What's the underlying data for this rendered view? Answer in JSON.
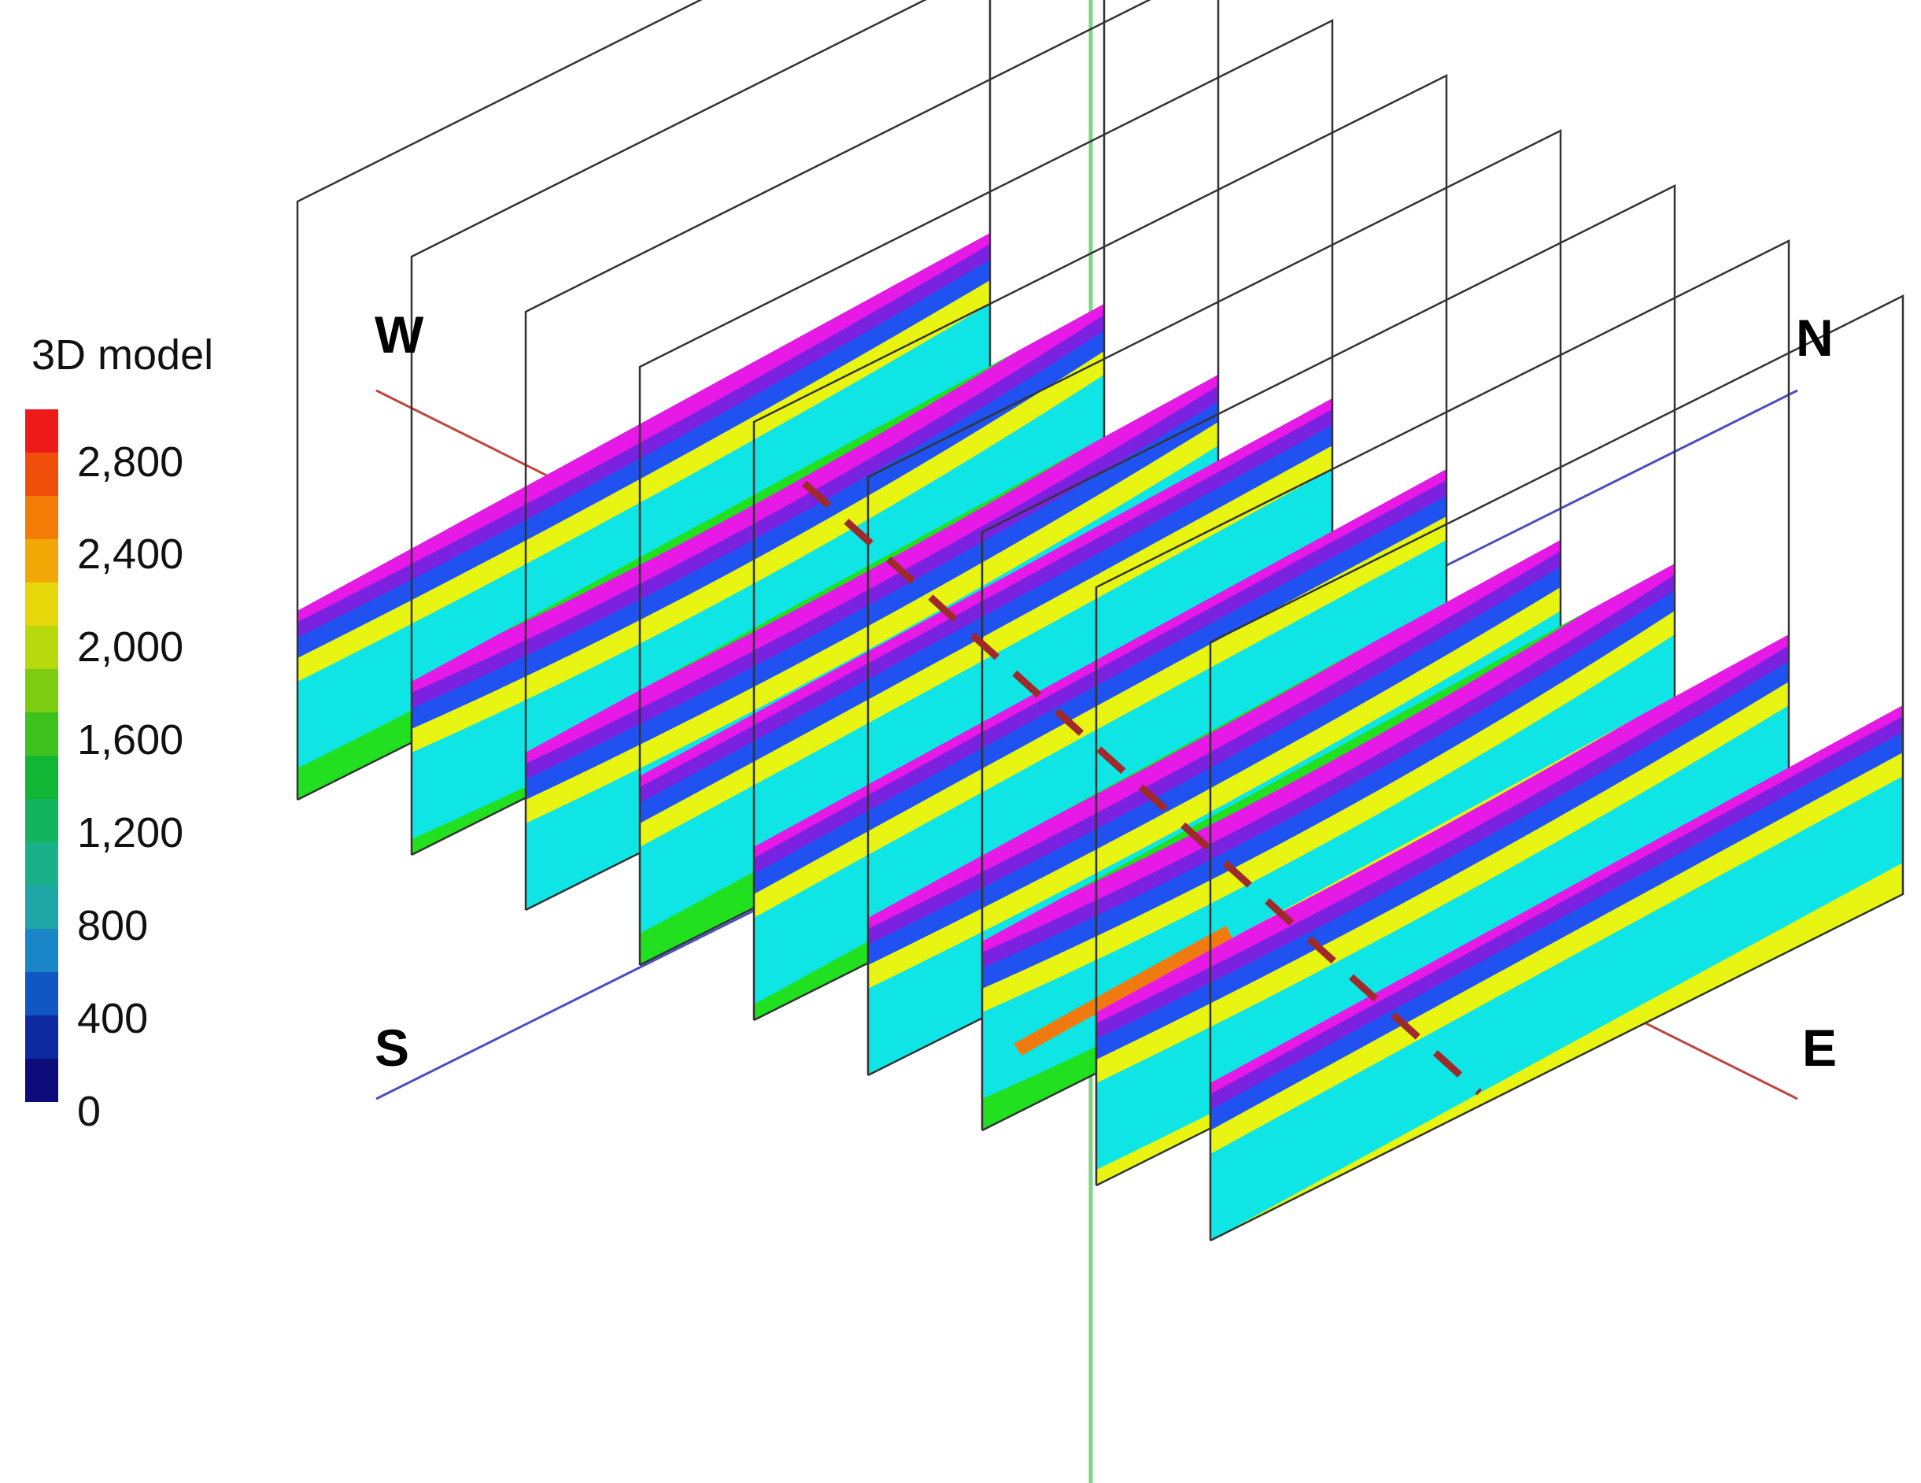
{
  "legend": {
    "title": "3D model",
    "ticks": [
      "2,800",
      "2,400",
      "2,000",
      "1,600",
      "1,200",
      "800",
      "400",
      "0"
    ],
    "colors": [
      "#0b0b7a",
      "#0d2aa0",
      "#1057c4",
      "#1a86c8",
      "#1fa6a6",
      "#19b08a",
      "#12b35e",
      "#10b634",
      "#3cc11e",
      "#7ccd12",
      "#b8d90e",
      "#e6d80a",
      "#f2a806",
      "#f37c06",
      "#ef4f0a",
      "#ee1a1a"
    ]
  },
  "compass": {
    "w": "W",
    "n": "N",
    "s": "S",
    "e": "E"
  },
  "slices": {
    "count": 9,
    "colors": {
      "magenta": "#e619e6",
      "purple": "#7a22e0",
      "blue": "#1f52f0",
      "cyan": "#10e5e5",
      "green": "#20e020",
      "yellow": "#e8f512",
      "orange": "#f07a10"
    }
  },
  "axes": {
    "we_line_color": "#c0453f",
    "sn_line_color": "#4a4fbf",
    "vertical_line_color": "#7fd47f",
    "dashed_line_color": "#9e2a2a"
  }
}
